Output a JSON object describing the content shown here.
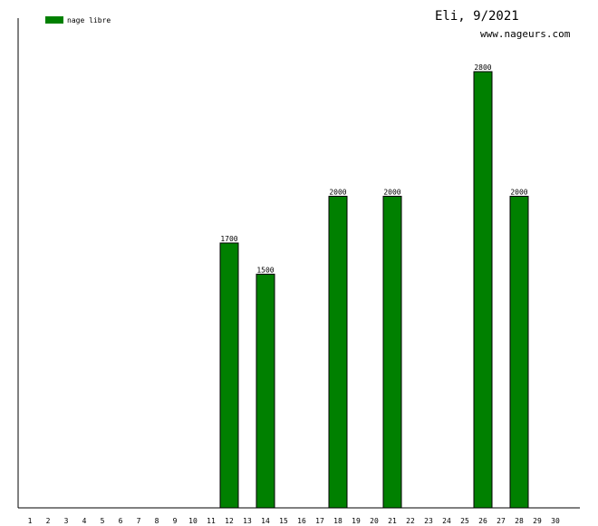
{
  "header": {
    "title": "Eli, 9/2021",
    "site": "www.nageurs.com"
  },
  "colors": {
    "bar": "#008000",
    "axis": "#000000"
  },
  "chart_data": {
    "type": "bar",
    "categories": [
      "1",
      "2",
      "3",
      "4",
      "5",
      "6",
      "7",
      "8",
      "9",
      "10",
      "11",
      "12",
      "13",
      "14",
      "15",
      "16",
      "17",
      "18",
      "19",
      "20",
      "21",
      "22",
      "23",
      "24",
      "25",
      "26",
      "27",
      "28",
      "29",
      "30"
    ],
    "series": [
      {
        "name": "nage libre",
        "values": [
          0,
          0,
          0,
          0,
          0,
          0,
          0,
          0,
          0,
          0,
          0,
          1700,
          0,
          1500,
          0,
          0,
          0,
          2000,
          0,
          0,
          2000,
          0,
          0,
          0,
          0,
          2800,
          0,
          2000,
          0,
          0
        ]
      }
    ],
    "data_labels": [
      "",
      "",
      "",
      "",
      "",
      "",
      "",
      "",
      "",
      "",
      "",
      "1700",
      "",
      "1500",
      "",
      "",
      "",
      "2000",
      "",
      "",
      "2000",
      "",
      "",
      "",
      "",
      "2800",
      "",
      "2000",
      "",
      ""
    ],
    "ylim": [
      0,
      3000
    ],
    "grid": false,
    "legend_position": "top-left"
  }
}
